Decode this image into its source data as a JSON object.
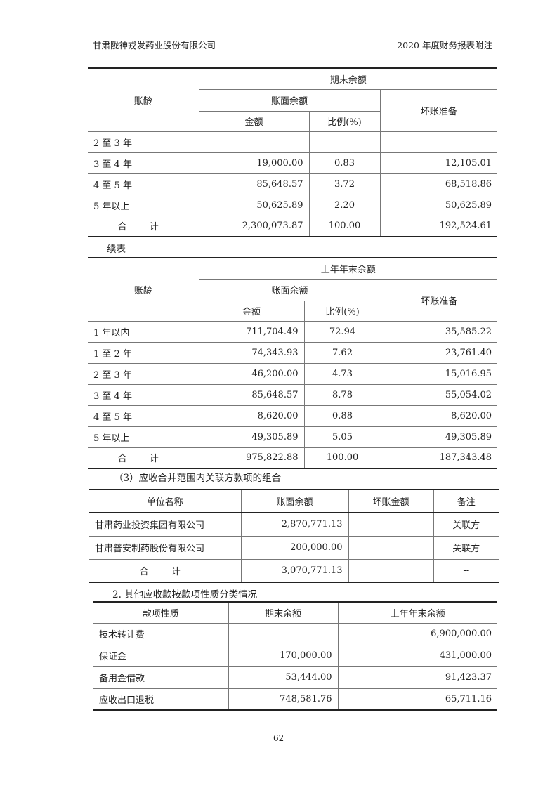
{
  "header": {
    "company": "甘肃陇神戎发药业股份有限公司",
    "report": "2020 年度财务报表附注"
  },
  "table1": {
    "h_age": "账龄",
    "h_group": "期末余额",
    "h_book": "账面余额",
    "h_amount": "金额",
    "h_ratio": "比例(%)",
    "h_bad": "坏账准备",
    "rows": [
      {
        "age": "2 至 3 年",
        "amount": "",
        "ratio": "",
        "bad": ""
      },
      {
        "age": "3 至 4 年",
        "amount": "19,000.00",
        "ratio": "0.83",
        "bad": "12,105.01"
      },
      {
        "age": "4 至 5 年",
        "amount": "85,648.57",
        "ratio": "3.72",
        "bad": "68,518.86"
      },
      {
        "age": "5 年以上",
        "amount": "50,625.89",
        "ratio": "2.20",
        "bad": "50,625.89"
      },
      {
        "age": "合 计",
        "amount": "2,300,073.87",
        "ratio": "100.00",
        "bad": "192,524.61"
      }
    ]
  },
  "continued": "续表",
  "table2": {
    "h_age": "账龄",
    "h_group": "上年年末余额",
    "h_book": "账面余额",
    "h_amount": "金额",
    "h_ratio": "比例(%)",
    "h_bad": "坏账准备",
    "rows": [
      {
        "age": "1 年以内",
        "amount": "711,704.49",
        "ratio": "72.94",
        "bad": "35,585.22"
      },
      {
        "age": "1 至 2 年",
        "amount": "74,343.93",
        "ratio": "7.62",
        "bad": "23,761.40"
      },
      {
        "age": "2 至 3 年",
        "amount": "46,200.00",
        "ratio": "4.73",
        "bad": "15,016.95"
      },
      {
        "age": "3 至 4 年",
        "amount": "85,648.57",
        "ratio": "8.78",
        "bad": "55,054.02"
      },
      {
        "age": "4 至 5 年",
        "amount": "8,620.00",
        "ratio": "0.88",
        "bad": "8,620.00"
      },
      {
        "age": "5 年以上",
        "amount": "49,305.89",
        "ratio": "5.05",
        "bad": "49,305.89"
      },
      {
        "age": "合 计",
        "amount": "975,822.88",
        "ratio": "100.00",
        "bad": "187,343.48"
      }
    ]
  },
  "section3": "（3）应收合并范围内关联方款项的组合",
  "table3": {
    "headers": [
      "单位名称",
      "账面余额",
      "坏账金额",
      "备注"
    ],
    "rows": [
      {
        "name": "甘肃药业投资集团有限公司",
        "book": "2,870,771.13",
        "bad": "",
        "note": "关联方"
      },
      {
        "name": "甘肃普安制药股份有限公司",
        "book": "200,000.00",
        "bad": "",
        "note": "关联方"
      },
      {
        "name": "合 计",
        "book": "3,070,771.13",
        "bad": "",
        "note": "--"
      }
    ]
  },
  "section2": "2. 其他应收款按款项性质分类情况",
  "table4": {
    "headers": [
      "款项性质",
      "期末余额",
      "上年年末余额"
    ],
    "rows": [
      {
        "type": "技术转让费",
        "end": "",
        "prev": "6,900,000.00"
      },
      {
        "type": "保证金",
        "end": "170,000.00",
        "prev": "431,000.00"
      },
      {
        "type": "备用金借款",
        "end": "53,444.00",
        "prev": "91,423.37"
      },
      {
        "type": "应收出口退税",
        "end": "748,581.76",
        "prev": "65,711.16"
      }
    ]
  },
  "page_number": "62"
}
